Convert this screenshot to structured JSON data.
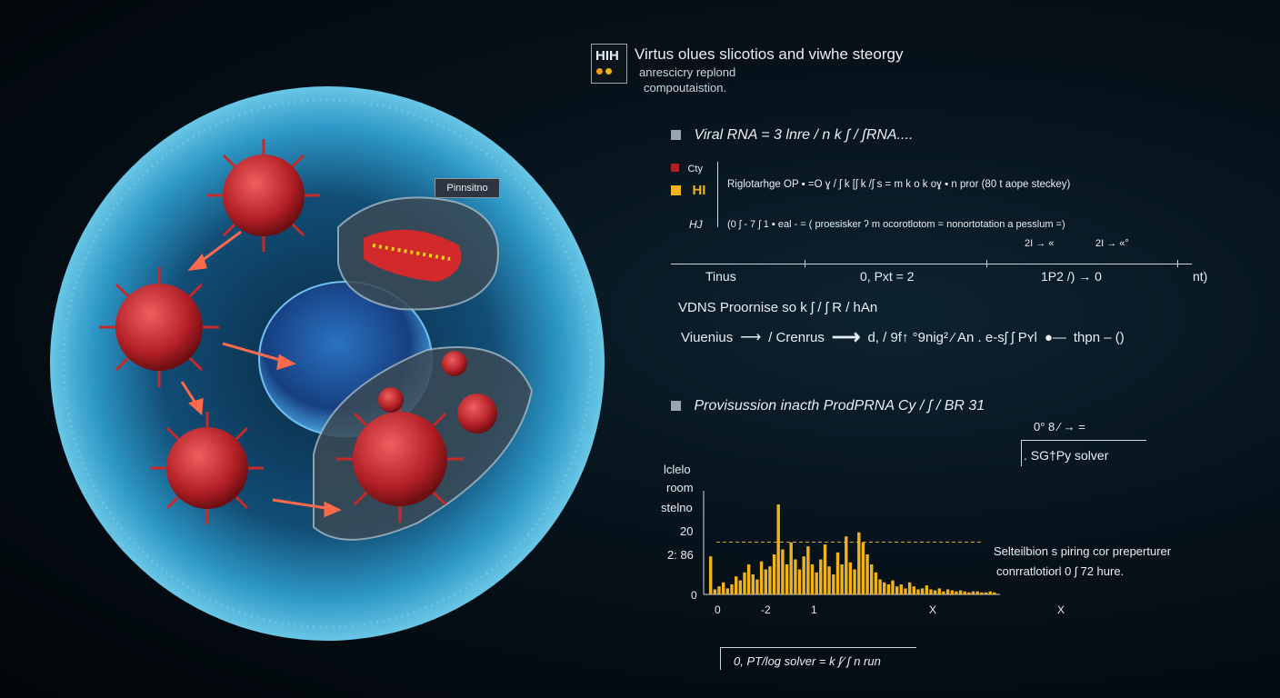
{
  "header": {
    "logo": "HIH",
    "title": "Virtus olues slicotios and viwhe steorgy",
    "subtitle1": "anrescicry replond",
    "subtitle2": "compoutaistion."
  },
  "illustration": {
    "label_tag": "Pinnsitno"
  },
  "viral_rna": {
    "heading": "Viral RNA  =  3  lnre  / n k ʃ / ʃRNA....",
    "cty_label": "Cty",
    "hi_label": "HI",
    "hj_label": "HJ",
    "row1": "Riglotarhge    OP  ▪ =O ɣ / ʃ k [ʃ k /ʃ  s = m k o  k oɣ      ▪  n  pror (80 t aope  steckey)",
    "row2": "(0 ʃ  - 7 ʃ 1     ▪  eal -  =  ( proesisker ʔ m   ocorotlotom  =   nonortotation  a pesslum  =)",
    "row3a": "2I  →  «",
    "row3b": "2I  →  «°",
    "axis_start": "Tinus",
    "axis_mid1": "0, Pxt  =  2",
    "axis_mid2": "1P2 /)  →  0",
    "axis_end": "nt)"
  },
  "flow": {
    "heading": "VDNS  Proornise  so  k ʃ / ʃ R / hAn",
    "step1": "Viuenius",
    "step2": "/ Crenrus",
    "step3": "d, /  9f↑ °9nig² ⁄ An  .  e-sʃ ʃ Pʏl",
    "step4": "thpn  –  ()"
  },
  "production": {
    "heading": "Provisussion  inacth  ProdPRNA    Cy / ʃ / BR 31",
    "solver_top": "0° 8 ⁄ →  =",
    "solver_label": ".  SG†Py  solver"
  },
  "chart_data": {
    "type": "bar",
    "ylabel_lines": [
      "lclelo",
      "room",
      "stelno"
    ],
    "ytick_labels": [
      "20",
      "2: 86",
      "0"
    ],
    "xtick_labels": [
      "0",
      "-2",
      "1",
      "X",
      "X"
    ],
    "threshold_label": "2: 86",
    "annotation_line1": "Selteilbion s piring cor preperturer",
    "annotation_line2": "conrratlotiorl 0 ʃ 72   hure.",
    "values": [
      0.38,
      0.05,
      0.08,
      0.12,
      0.06,
      0.1,
      0.18,
      0.14,
      0.22,
      0.3,
      0.2,
      0.15,
      0.33,
      0.25,
      0.28,
      0.4,
      0.9,
      0.45,
      0.3,
      0.52,
      0.35,
      0.25,
      0.38,
      0.48,
      0.3,
      0.22,
      0.35,
      0.5,
      0.28,
      0.2,
      0.42,
      0.3,
      0.58,
      0.32,
      0.25,
      0.62,
      0.52,
      0.4,
      0.3,
      0.22,
      0.15,
      0.12,
      0.1,
      0.14,
      0.08,
      0.1,
      0.06,
      0.12,
      0.08,
      0.05,
      0.06,
      0.09,
      0.05,
      0.04,
      0.06,
      0.03,
      0.05,
      0.04,
      0.03,
      0.04,
      0.03,
      0.02,
      0.03,
      0.03,
      0.02,
      0.02,
      0.03,
      0.02
    ],
    "bar_color": "#f2b21b",
    "threshold_color": "#d9a02a"
  },
  "footer": {
    "formula": "0, PT/log   solver = k ʃ⁄ ʃ n run"
  },
  "colors": {
    "accent_gold": "#f2b21b",
    "virus_red": "#c72a2a",
    "cell_blue": "#49a9d8",
    "nucleus_blue": "#1e5fa8"
  }
}
